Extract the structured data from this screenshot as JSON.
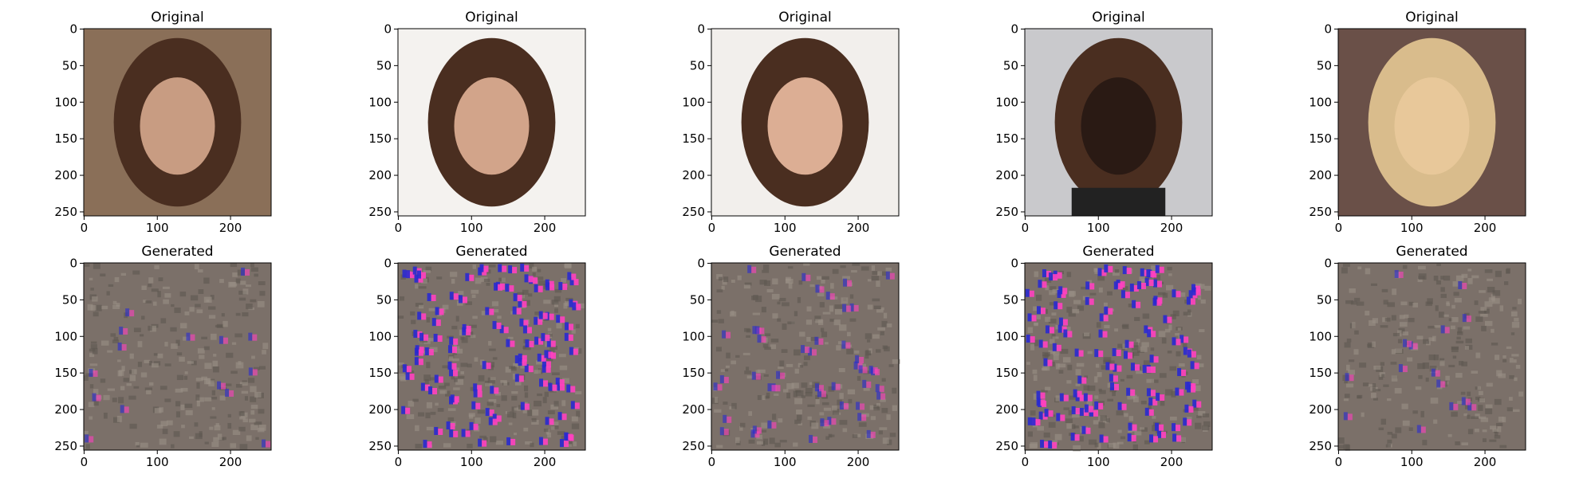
{
  "panels": [
    {
      "title": "Original",
      "xlim": [
        -0.5,
        255.5
      ],
      "ylim": [
        255.5,
        -0.5
      ],
      "xticks": [
        0,
        100,
        200
      ],
      "yticks": [
        0,
        50,
        100,
        150,
        200,
        250
      ]
    },
    {
      "title": "Original",
      "xlim": [
        -0.5,
        255.5
      ],
      "ylim": [
        255.5,
        -0.5
      ],
      "xticks": [
        0,
        100,
        200
      ],
      "yticks": [
        0,
        50,
        100,
        150,
        200,
        250
      ]
    },
    {
      "title": "Original",
      "xlim": [
        -0.5,
        255.5
      ],
      "ylim": [
        255.5,
        -0.5
      ],
      "xticks": [
        0,
        100,
        200
      ],
      "yticks": [
        0,
        50,
        100,
        150,
        200,
        250
      ]
    },
    {
      "title": "Original",
      "xlim": [
        -0.5,
        255.5
      ],
      "ylim": [
        255.5,
        -0.5
      ],
      "xticks": [
        0,
        100,
        200
      ],
      "yticks": [
        0,
        50,
        100,
        150,
        200,
        250
      ]
    },
    {
      "title": "Original",
      "xlim": [
        -0.5,
        255.5
      ],
      "ylim": [
        255.5,
        -0.5
      ],
      "xticks": [
        0,
        100,
        200
      ],
      "yticks": [
        0,
        50,
        100,
        150,
        200,
        250
      ]
    },
    {
      "title": "Generated",
      "xlim": [
        -0.5,
        255.5
      ],
      "ylim": [
        255.5,
        -0.5
      ],
      "xticks": [
        0,
        100,
        200
      ],
      "yticks": [
        0,
        50,
        100,
        150,
        200,
        250
      ]
    },
    {
      "title": "Generated",
      "xlim": [
        -0.5,
        255.5
      ],
      "ylim": [
        255.5,
        -0.5
      ],
      "xticks": [
        0,
        100,
        200
      ],
      "yticks": [
        0,
        50,
        100,
        150,
        200,
        250
      ]
    },
    {
      "title": "Generated",
      "xlim": [
        -0.5,
        255.5
      ],
      "ylim": [
        255.5,
        -0.5
      ],
      "xticks": [
        0,
        100,
        200
      ],
      "yticks": [
        0,
        50,
        100,
        150,
        200,
        250
      ]
    },
    {
      "title": "Generated",
      "xlim": [
        -0.5,
        255.5
      ],
      "ylim": [
        255.5,
        -0.5
      ],
      "xticks": [
        0,
        100,
        200
      ],
      "yticks": [
        0,
        50,
        100,
        150,
        200,
        250
      ]
    },
    {
      "title": "Generated",
      "xlim": [
        -0.5,
        255.5
      ],
      "ylim": [
        255.5,
        -0.5
      ],
      "xticks": [
        0,
        100,
        200
      ],
      "yticks": [
        0,
        50,
        100,
        150,
        200,
        250
      ]
    }
  ]
}
